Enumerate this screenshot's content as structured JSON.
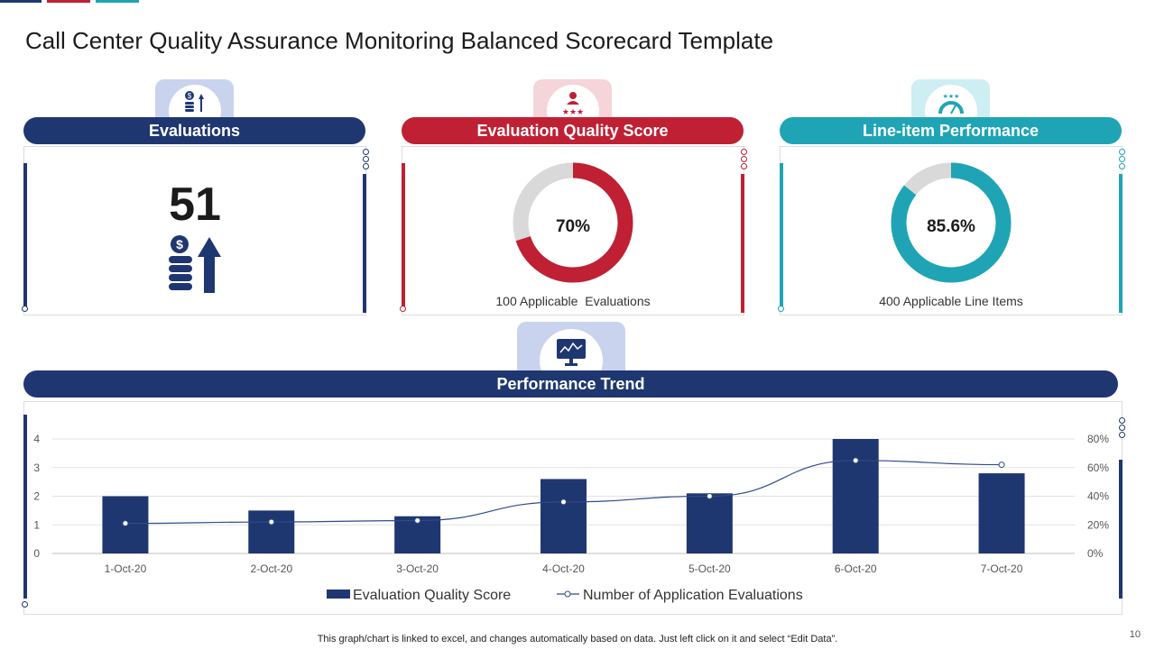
{
  "title": "Call Center Quality Assurance Monitoring Balanced Scorecard Template",
  "colors": {
    "navy": "#1f3770",
    "red": "#bf2033",
    "teal": "#1fa4b5",
    "navy_light": "#c9d3ee",
    "red_light": "#f5d5d9",
    "teal_light": "#cdeef3",
    "donut_track": "#d9d9d9"
  },
  "cards": {
    "evaluations": {
      "header": "Evaluations",
      "value": "51",
      "icon": "coins-up-arrow-icon"
    },
    "quality": {
      "header": "Evaluation Quality Score",
      "percent_label": "70%",
      "percent_value": 70,
      "caption": "100 Applicable  Evaluations",
      "icon": "user-rating-icon"
    },
    "lineitem": {
      "header": "Line-item Performance",
      "percent_label": "85.6%",
      "percent_value": 85.6,
      "caption": "400 Applicable Line Items",
      "icon": "speedometer-icon"
    }
  },
  "trend": {
    "header": "Performance Trend",
    "icon": "monitor-chart-icon"
  },
  "chart_data": {
    "type": "bar",
    "categories": [
      "1-Oct-20",
      "2-Oct-20",
      "3-Oct-20",
      "4-Oct-20",
      "5-Oct-20",
      "6-Oct-20",
      "7-Oct-20"
    ],
    "series": [
      {
        "name": "Evaluation Quality Score",
        "kind": "bar",
        "axis": "left",
        "values": [
          2.0,
          1.5,
          1.3,
          2.6,
          2.1,
          4.0,
          2.8
        ]
      },
      {
        "name": "Number of Application Evaluations",
        "kind": "line",
        "axis": "right",
        "values": [
          0.21,
          0.22,
          0.23,
          0.36,
          0.4,
          0.65,
          0.62
        ]
      }
    ],
    "left_axis": {
      "min": 0,
      "max": 4,
      "ticks": [
        "0",
        "1",
        "2",
        "3",
        "4"
      ]
    },
    "right_axis": {
      "min": 0,
      "max": 0.8,
      "ticks": [
        "0%",
        "20%",
        "40%",
        "60%",
        "80%"
      ]
    },
    "legend": "bottom"
  },
  "footer": "This graph/chart is linked to excel,  and changes automatically based on data. Just left click on it and select “Edit Data”.",
  "page_number": "10"
}
